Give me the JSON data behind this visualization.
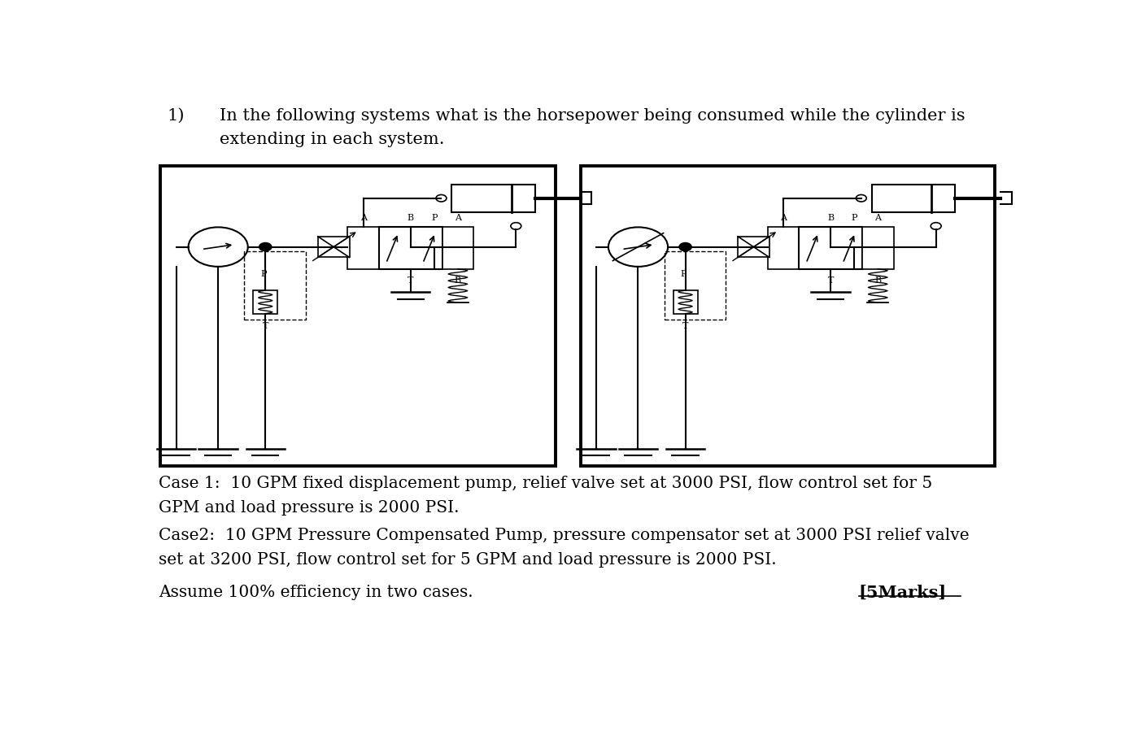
{
  "background_color": "#ffffff",
  "question_number": "1)",
  "question_line1": "In the following systems what is the horsepower being consumed while the cylinder is",
  "question_line2": "extending in each system.",
  "case1_line1": "Case 1:  10 GPM fixed displacement pump, relief valve set at 3000 PSI, flow control set for 5",
  "case1_line2": "GPM and load pressure is 2000 PSI.",
  "case2_line1": "Case2:  10 GPM Pressure Compensated Pump, pressure compensator set at 3000 PSI relief valve",
  "case2_line2": "set at 3200 PSI, flow control set for 5 GPM and load pressure is 2000 PSI.",
  "assume_line": "Assume 100% efficiency in two cases.",
  "marks": "[5Marks]",
  "text_color": "#000000",
  "font_size_question": 15,
  "font_size_body": 14.5,
  "font_size_marks": 15
}
